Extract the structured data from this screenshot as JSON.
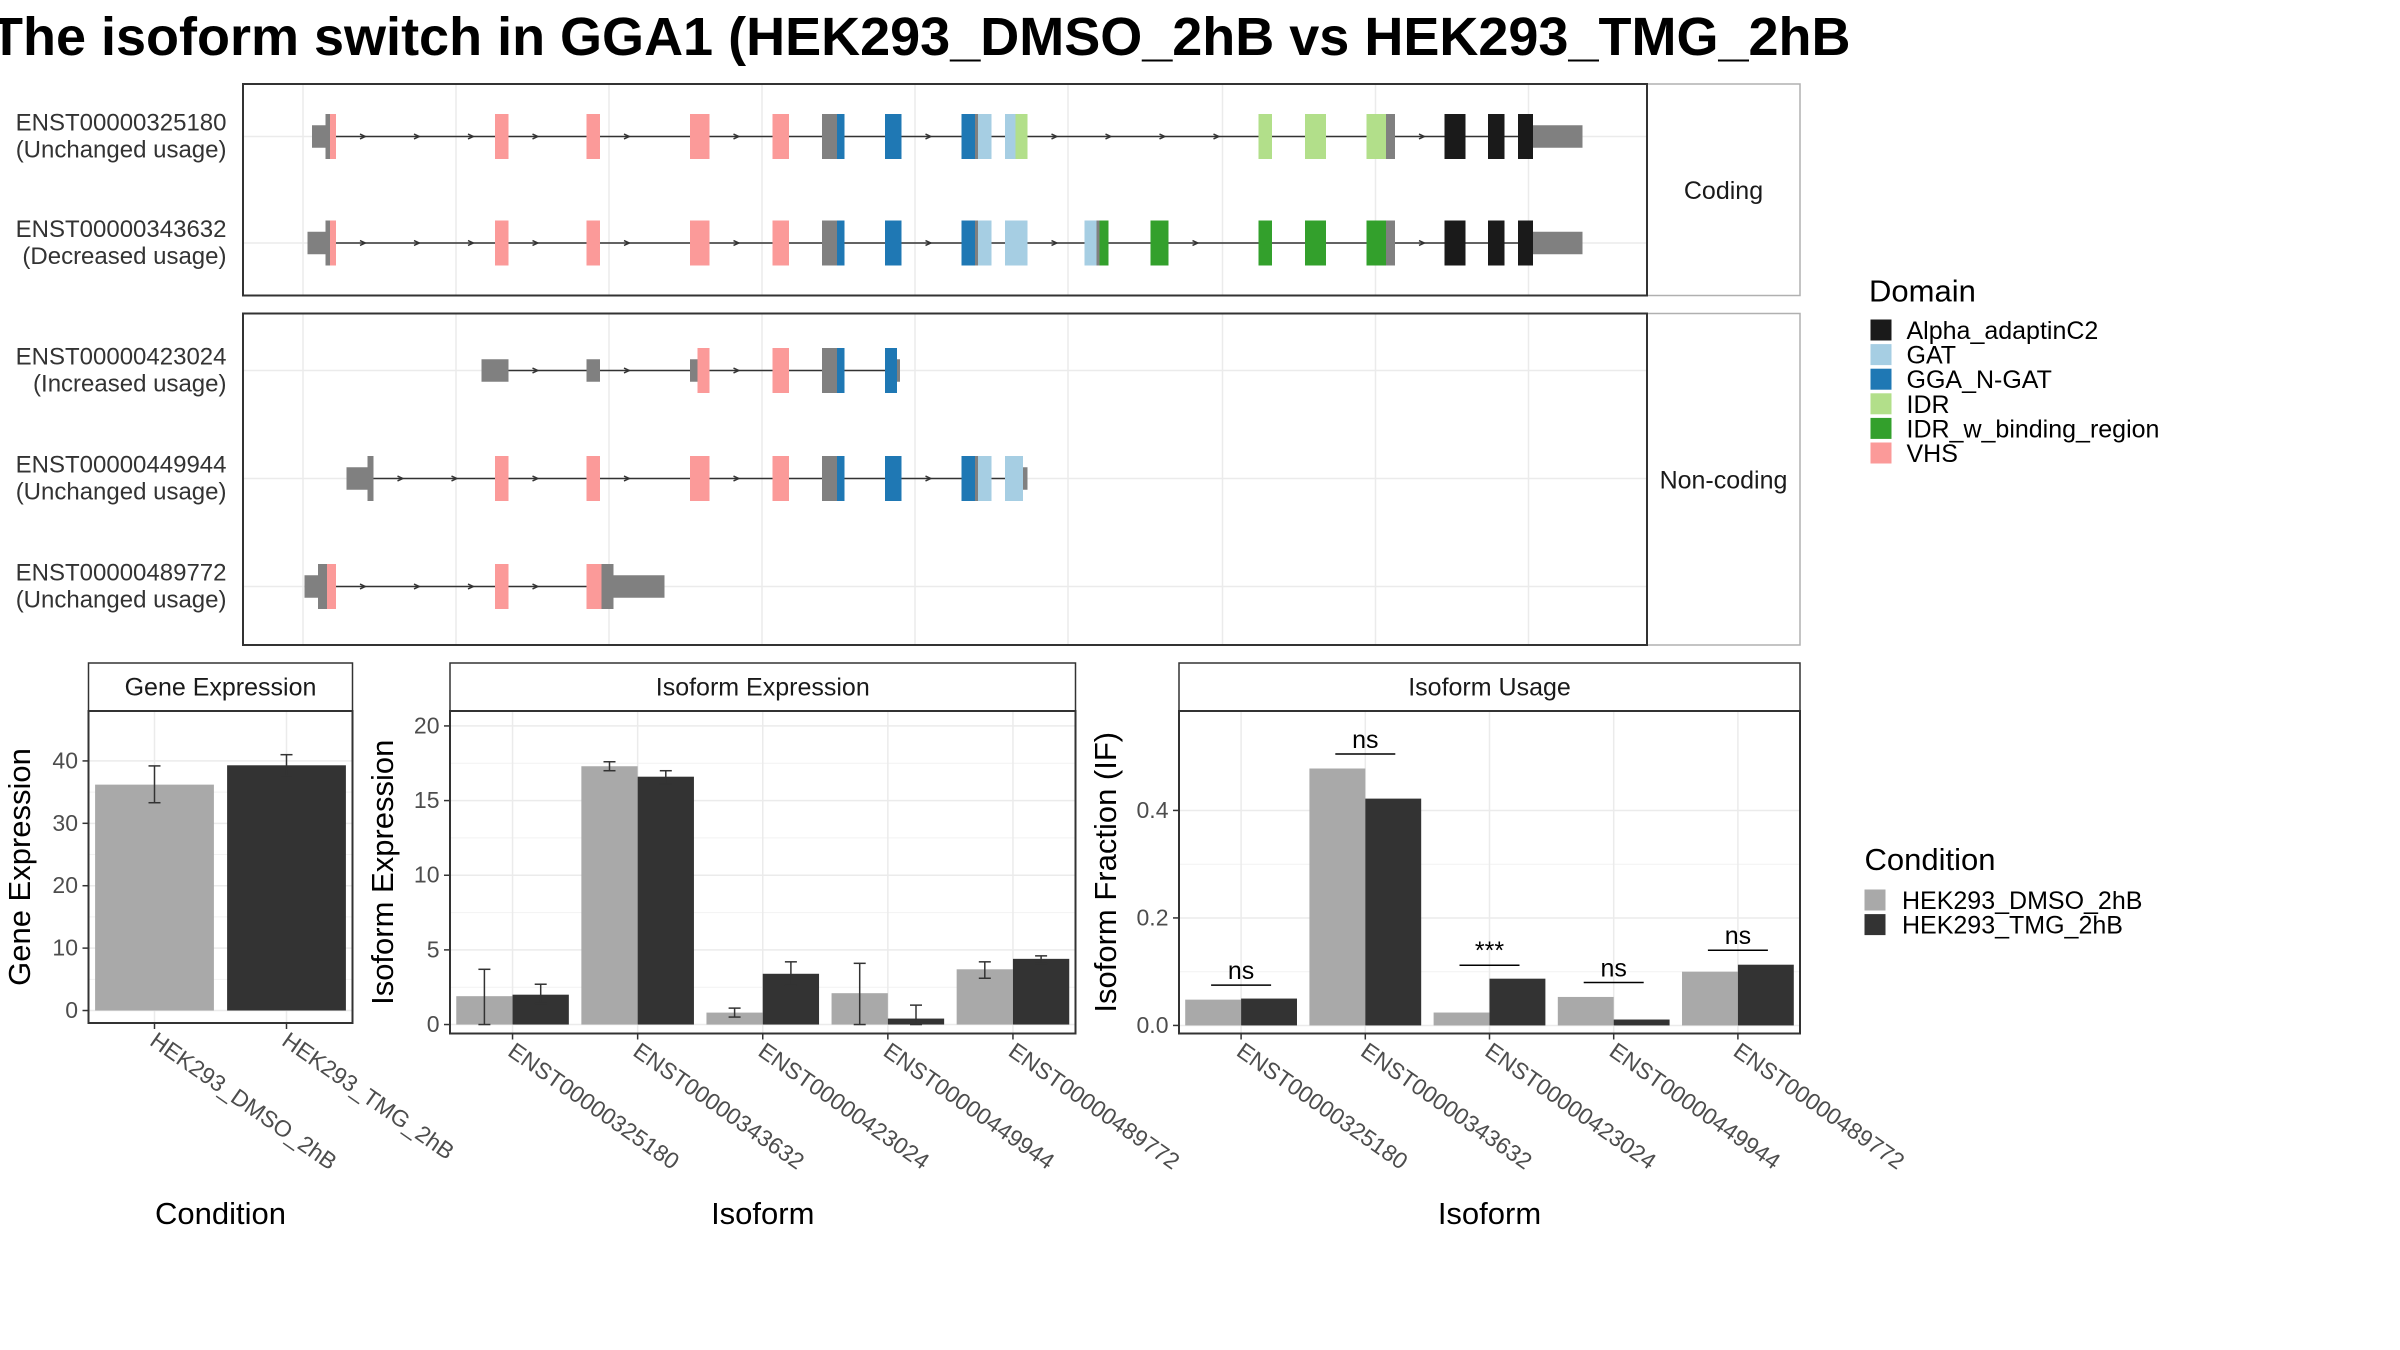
{
  "title": "The isoform switch in GGA1 (HEK293_DMSO_2hB vs HEK293_TMG_2hB",
  "colors": {
    "utr": "#808080",
    "Alpha_adaptinC2": "#1a1a1a",
    "GAT": "#a6cee3",
    "GGA_N-GAT": "#1f78b4",
    "IDR": "#b2df8a",
    "IDR_w_binding_region": "#33a02c",
    "VHS": "#fb9a99",
    "HEK293_DMSO_2hB": "#a9a9a9",
    "HEK293_TMG_2hB": "#333333"
  },
  "structure": {
    "facet_labels": {
      "coding": "Coding",
      "noncoding": "Non-coding"
    },
    "transcripts": [
      {
        "id": "ENST00000325180",
        "usage": "(Unchanged usage)",
        "group": "coding",
        "start": 208,
        "end": 1055,
        "features": [
          [
            208,
            217,
            "utr",
            0.5
          ],
          [
            217,
            220,
            "utr",
            0.9
          ],
          [
            220,
            224,
            "VHS",
            0.9
          ],
          [
            330,
            339,
            "VHS",
            0.9
          ],
          [
            391,
            400,
            "VHS",
            0.9
          ],
          [
            460,
            473,
            "VHS",
            0.9
          ],
          [
            515,
            526,
            "VHS",
            0.9
          ],
          [
            548,
            558,
            "utr",
            0.9
          ],
          [
            558,
            563,
            "GGA_N-GAT",
            0.9
          ],
          [
            590,
            601,
            "GGA_N-GAT",
            0.9
          ],
          [
            641,
            650,
            "GGA_N-GAT",
            0.9
          ],
          [
            650,
            652,
            "utr",
            0.9
          ],
          [
            652,
            661,
            "GAT",
            0.9
          ],
          [
            670,
            677,
            "GAT",
            0.9
          ],
          [
            677,
            685,
            "IDR",
            0.9
          ],
          [
            839,
            848,
            "IDR",
            0.9
          ],
          [
            870,
            884,
            "IDR",
            0.9
          ],
          [
            911,
            924,
            "IDR",
            0.9
          ],
          [
            924,
            930,
            "utr",
            0.9
          ],
          [
            963,
            977,
            "Alpha_adaptinC2",
            0.9
          ],
          [
            992,
            1003,
            "Alpha_adaptinC2",
            0.9
          ],
          [
            1012,
            1022,
            "Alpha_adaptinC2",
            0.9
          ],
          [
            1022,
            1055,
            "utr",
            0.5
          ]
        ]
      },
      {
        "id": "ENST00000343632",
        "usage": "(Decreased usage)",
        "group": "coding",
        "start": 205,
        "end": 1055,
        "features": [
          [
            205,
            217,
            "utr",
            0.5
          ],
          [
            217,
            220,
            "utr",
            0.9
          ],
          [
            220,
            224,
            "VHS",
            0.9
          ],
          [
            330,
            339,
            "VHS",
            0.9
          ],
          [
            391,
            400,
            "VHS",
            0.9
          ],
          [
            460,
            473,
            "VHS",
            0.9
          ],
          [
            515,
            526,
            "VHS",
            0.9
          ],
          [
            548,
            558,
            "utr",
            0.9
          ],
          [
            558,
            563,
            "GGA_N-GAT",
            0.9
          ],
          [
            590,
            601,
            "GGA_N-GAT",
            0.9
          ],
          [
            641,
            650,
            "GGA_N-GAT",
            0.9
          ],
          [
            650,
            652,
            "utr",
            0.9
          ],
          [
            652,
            661,
            "GAT",
            0.9
          ],
          [
            670,
            685,
            "GAT",
            0.9
          ],
          [
            723,
            731,
            "GAT",
            0.9
          ],
          [
            731,
            733,
            "utr",
            0.9
          ],
          [
            733,
            739,
            "IDR_w_binding_region",
            0.9
          ],
          [
            767,
            779,
            "IDR_w_binding_region",
            0.9
          ],
          [
            839,
            848,
            "IDR_w_binding_region",
            0.9
          ],
          [
            870,
            884,
            "IDR_w_binding_region",
            0.9
          ],
          [
            911,
            924,
            "IDR_w_binding_region",
            0.9
          ],
          [
            924,
            930,
            "utr",
            0.9
          ],
          [
            963,
            977,
            "Alpha_adaptinC2",
            0.9
          ],
          [
            992,
            1003,
            "Alpha_adaptinC2",
            0.9
          ],
          [
            1012,
            1022,
            "Alpha_adaptinC2",
            0.9
          ],
          [
            1022,
            1055,
            "utr",
            0.5
          ]
        ]
      },
      {
        "id": "ENST00000423024",
        "usage": "(Increased usage)",
        "group": "noncoding",
        "start": 321,
        "end": 600,
        "features": [
          [
            321,
            339,
            "utr",
            0.5
          ],
          [
            391,
            400,
            "utr",
            0.5
          ],
          [
            460,
            465,
            "utr",
            0.5
          ],
          [
            465,
            473,
            "VHS",
            0.9
          ],
          [
            515,
            526,
            "VHS",
            0.9
          ],
          [
            548,
            558,
            "utr",
            0.9
          ],
          [
            558,
            563,
            "GGA_N-GAT",
            0.9
          ],
          [
            590,
            598,
            "GGA_N-GAT",
            0.9
          ],
          [
            598,
            600,
            "utr",
            0.5
          ]
        ]
      },
      {
        "id": "ENST00000449944",
        "usage": "(Unchanged usage)",
        "group": "noncoding",
        "start": 231,
        "end": 685,
        "features": [
          [
            231,
            245,
            "utr",
            0.5
          ],
          [
            245,
            249,
            "utr",
            0.9
          ],
          [
            330,
            339,
            "VHS",
            0.9
          ],
          [
            391,
            400,
            "VHS",
            0.9
          ],
          [
            460,
            473,
            "VHS",
            0.9
          ],
          [
            515,
            526,
            "VHS",
            0.9
          ],
          [
            548,
            558,
            "utr",
            0.9
          ],
          [
            558,
            563,
            "GGA_N-GAT",
            0.9
          ],
          [
            590,
            601,
            "GGA_N-GAT",
            0.9
          ],
          [
            641,
            650,
            "GGA_N-GAT",
            0.9
          ],
          [
            650,
            652,
            "utr",
            0.9
          ],
          [
            652,
            661,
            "GAT",
            0.9
          ],
          [
            670,
            682,
            "GAT",
            0.9
          ],
          [
            682,
            685,
            "utr",
            0.5
          ]
        ]
      },
      {
        "id": "ENST00000489772",
        "usage": "(Unchanged usage)",
        "group": "noncoding",
        "start": 203,
        "end": 443,
        "features": [
          [
            203,
            212,
            "utr",
            0.5
          ],
          [
            212,
            218,
            "utr",
            0.9
          ],
          [
            218,
            224,
            "VHS",
            0.9
          ],
          [
            330,
            339,
            "VHS",
            0.9
          ],
          [
            391,
            401,
            "VHS",
            0.9
          ],
          [
            401,
            409,
            "utr",
            0.9
          ],
          [
            409,
            443,
            "utr",
            0.5
          ]
        ]
      }
    ]
  },
  "domain_legend": {
    "title": "Domain",
    "entries": [
      "Alpha_adaptinC2",
      "GAT",
      "GGA_N-GAT",
      "IDR",
      "IDR_w_binding_region",
      "VHS"
    ]
  },
  "condition_legend": {
    "title": "Condition",
    "entries": [
      "HEK293_DMSO_2hB",
      "HEK293_TMG_2hB"
    ]
  },
  "chart_data": [
    {
      "type": "bar",
      "title": "Gene Expression",
      "xlabel": "Condition",
      "ylabel": "Gene Expression",
      "ylim": [
        -2,
        48
      ],
      "yticks": [
        0,
        10,
        20,
        30,
        40
      ],
      "categories": [
        "HEK293_DMSO_2hB",
        "HEK293_TMG_2hB"
      ],
      "series": [
        {
          "name": "HEK293_DMSO_2hB",
          "values": [
            36.2,
            null
          ],
          "err": [
            [
              33.3,
              39.2
            ],
            null
          ]
        },
        {
          "name": "HEK293_TMG_2hB",
          "values": [
            null,
            39.3
          ],
          "err": [
            null,
            [
              37.6,
              41.0
            ]
          ]
        }
      ]
    },
    {
      "type": "bar",
      "title": "Isoform Expression",
      "xlabel": "Isoform",
      "ylabel": "Isoform Expression",
      "ylim": [
        -0.6,
        21
      ],
      "yticks": [
        0,
        5,
        10,
        15,
        20
      ],
      "categories": [
        "ENST00000325180",
        "ENST00000343632",
        "ENST00000423024",
        "ENST00000449944",
        "ENST00000489772"
      ],
      "series": [
        {
          "name": "HEK293_DMSO_2hB",
          "values": [
            1.9,
            17.3,
            0.8,
            2.1,
            3.7
          ],
          "err": [
            [
              0.0,
              3.7
            ],
            [
              17.0,
              17.6
            ],
            [
              0.5,
              1.1
            ],
            [
              0.0,
              4.1
            ],
            [
              3.1,
              4.2
            ]
          ]
        },
        {
          "name": "HEK293_TMG_2hB",
          "values": [
            2.0,
            16.6,
            3.4,
            0.4,
            4.4
          ],
          "err": [
            [
              1.4,
              2.7
            ],
            [
              16.1,
              17.0
            ],
            [
              2.6,
              4.2
            ],
            [
              0.0,
              1.3
            ],
            [
              4.1,
              4.6
            ]
          ]
        }
      ]
    },
    {
      "type": "bar",
      "title": "Isoform Usage",
      "xlabel": "Isoform",
      "ylabel": "Isoform Fraction (IF)",
      "ylim": [
        -0.015,
        0.585
      ],
      "yticks": [
        0.0,
        0.2,
        0.4
      ],
      "ytick_labels": [
        "0.0",
        "0.2",
        "0.4"
      ],
      "categories": [
        "ENST00000325180",
        "ENST00000343632",
        "ENST00000423024",
        "ENST00000449944",
        "ENST00000489772"
      ],
      "series": [
        {
          "name": "HEK293_DMSO_2hB",
          "values": [
            0.048,
            0.478,
            0.024,
            0.053,
            0.1
          ]
        },
        {
          "name": "HEK293_TMG_2hB",
          "values": [
            0.05,
            0.422,
            0.087,
            0.011,
            0.113
          ]
        }
      ],
      "significance": [
        "ns",
        "ns",
        "***",
        "ns",
        "ns"
      ],
      "significance_y": [
        0.075,
        0.505,
        0.112,
        0.08,
        0.14
      ]
    }
  ]
}
